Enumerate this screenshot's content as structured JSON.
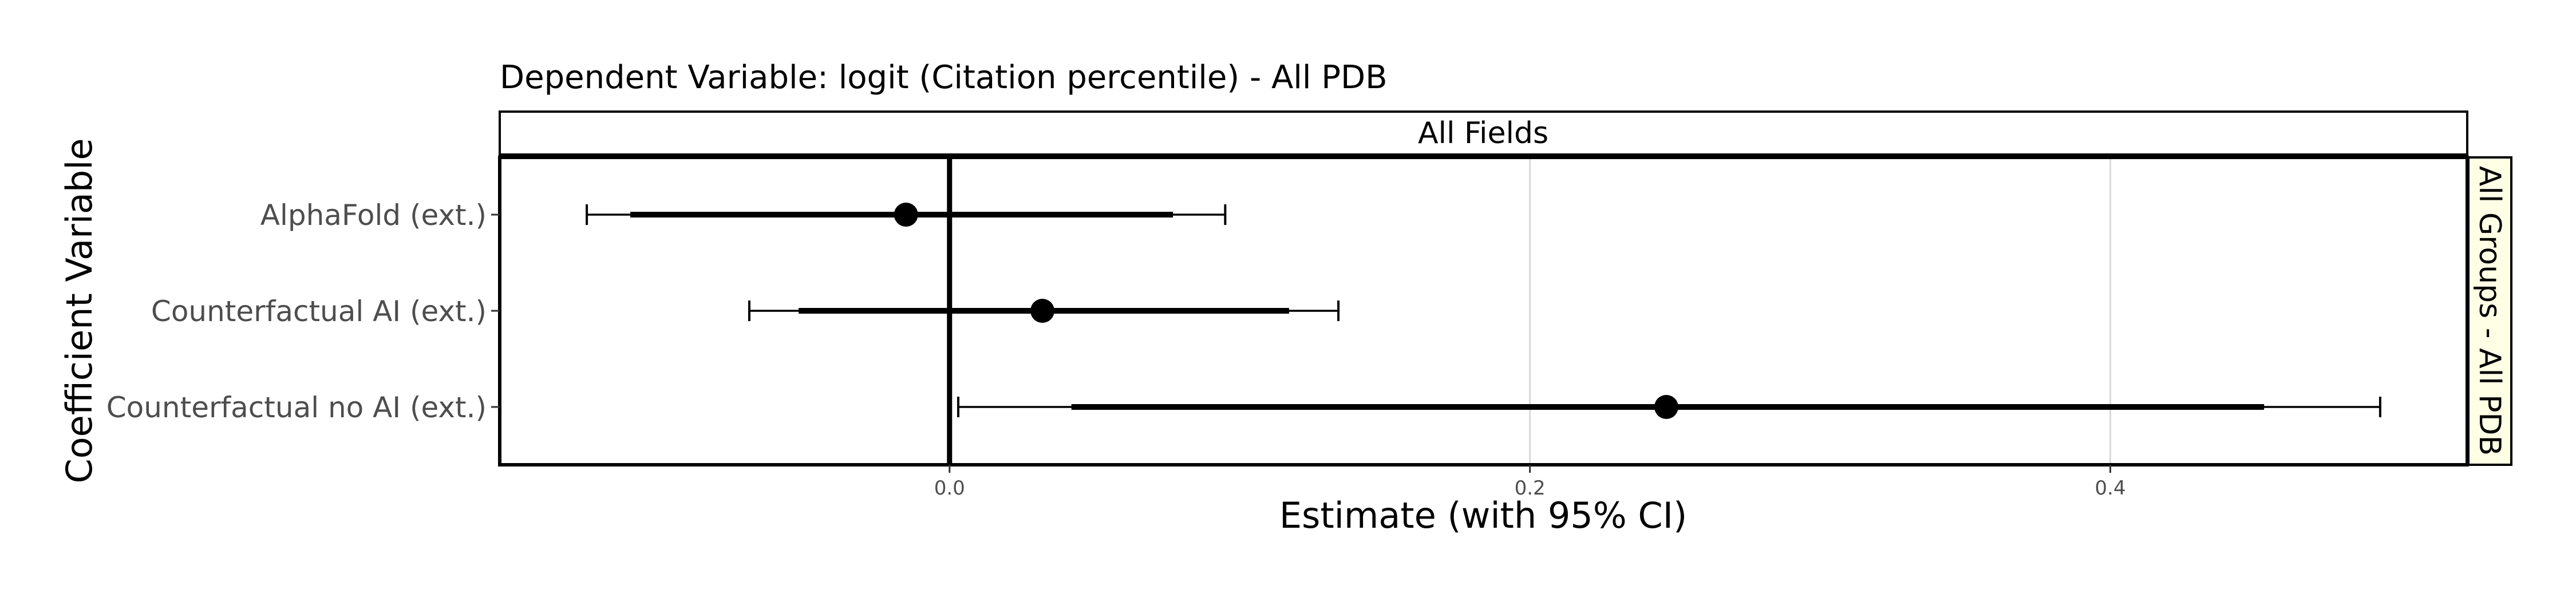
{
  "chart_data": {
    "type": "scatter",
    "title": "Dependent Variable: logit (Citation percentile)  -  All PDB",
    "facet_label": "All Fields",
    "side_strip_label": "All Groups - All PDB",
    "xlabel": "Estimate (with 95% CI)",
    "ylabel": "Coefficient Variable",
    "xlim": [
      -0.155,
      0.523
    ],
    "x_ticks": [
      0.0,
      0.2,
      0.4
    ],
    "x_tick_labels": [
      "0.0",
      "0.2",
      "0.4"
    ],
    "reference_line_x": 0.0,
    "grid": "vertical major lines",
    "categories": [
      "AlphaFold (ext.)",
      "Counterfactual AI (ext.)",
      "Counterfactual no AI (ext.)"
    ],
    "estimates": [
      -0.015,
      0.032,
      0.247
    ],
    "ci_inner": [
      [
        -0.11,
        0.077
      ],
      [
        -0.052,
        0.117
      ],
      [
        0.042,
        0.453
      ]
    ],
    "ci_95": [
      [
        -0.125,
        0.095
      ],
      [
        -0.069,
        0.134
      ],
      [
        0.003,
        0.493
      ]
    ],
    "colors": {
      "marks": "#000000",
      "grid": "#d9d9d9",
      "side_strip_fill": "#ffffe6"
    }
  }
}
